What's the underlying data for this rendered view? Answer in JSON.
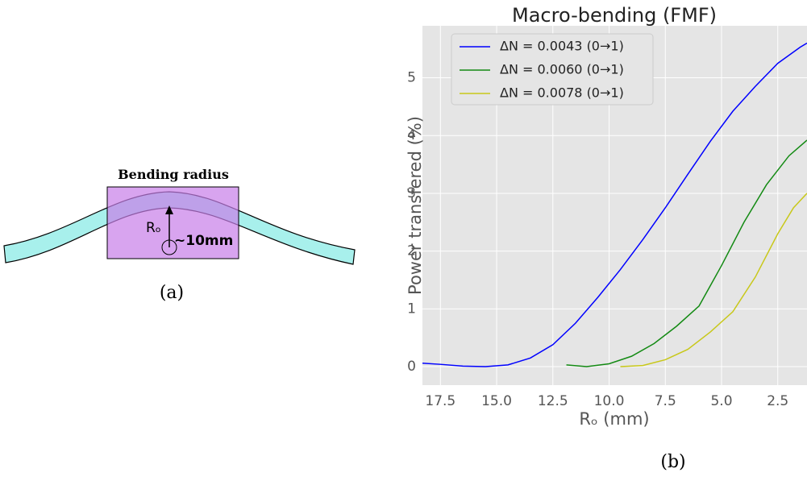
{
  "diagram": {
    "title": "Bending radius",
    "radius_label": "Rₒ",
    "size_label": "~10mm",
    "caption": "(a)"
  },
  "chart_data": {
    "type": "line",
    "title": "Macro-bending (FMF)",
    "xlabel": "Rₒ (mm)",
    "ylabel": "Power transfered (%)",
    "caption": "(b)",
    "xlim": [
      18.3,
      1.2
    ],
    "ylim": [
      -0.32,
      5.9
    ],
    "xticks": [
      17.5,
      {
        "value": 15,
        "label": "15.0"
      },
      12.5,
      {
        "value": 10,
        "label": "10.0"
      },
      7.5,
      {
        "value": 5,
        "label": "5.0"
      },
      2.5
    ],
    "yticks": [
      0,
      1,
      2,
      3,
      4,
      5
    ],
    "grid": true,
    "legend": "upper left",
    "series": [
      {
        "name": "ΔN = 0.0043 (0→1)",
        "color": "#0000ff",
        "x": [
          18.3,
          17.5,
          16.5,
          15.5,
          14.5,
          13.5,
          12.5,
          11.5,
          10.5,
          9.5,
          8.5,
          7.5,
          6.5,
          5.5,
          4.5,
          3.5,
          2.5,
          1.5,
          1.2
        ],
        "values": [
          0.06,
          0.04,
          0.01,
          0.0,
          0.03,
          0.15,
          0.38,
          0.75,
          1.2,
          1.68,
          2.2,
          2.75,
          3.33,
          3.9,
          4.42,
          4.85,
          5.25,
          5.53,
          5.6
        ]
      },
      {
        "name": "ΔN = 0.0060 (0→1)",
        "color": "#138a13",
        "x": [
          11.9,
          11,
          10,
          9,
          8,
          7,
          6,
          5,
          4,
          3,
          2,
          1.2
        ],
        "values": [
          0.03,
          0.0,
          0.05,
          0.18,
          0.4,
          0.7,
          1.05,
          1.75,
          2.5,
          3.15,
          3.65,
          3.92
        ]
      },
      {
        "name": "ΔN = 0.0078 (0→1)",
        "color": "#c8c819",
        "x": [
          9.5,
          8.5,
          7.5,
          6.5,
          5.5,
          4.5,
          3.5,
          2.5,
          1.8,
          1.2
        ],
        "values": [
          0.0,
          0.02,
          0.12,
          0.3,
          0.6,
          0.95,
          1.55,
          2.3,
          2.75,
          3.0
        ]
      }
    ]
  }
}
